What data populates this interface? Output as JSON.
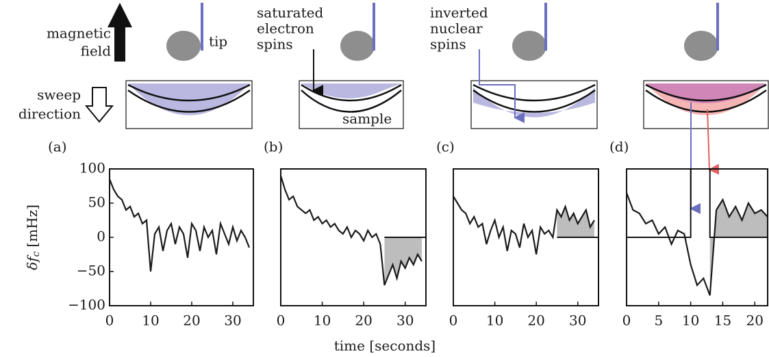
{
  "diagram": {
    "magnetic_field": [
      "magnetic",
      "field"
    ],
    "tip": "tip",
    "sweep_direction": [
      "sweep",
      "direction"
    ],
    "saturated": [
      "saturated",
      "electron",
      "spins"
    ],
    "inverted": [
      "inverted",
      "nuclear",
      "spins"
    ],
    "sample": "sample"
  },
  "xlabel": "time [seconds]",
  "ylabel": {
    "symbol": "δf",
    "subscript": "c",
    "unit": "[mHz]"
  },
  "chart_data": [
    {
      "type": "line",
      "label": "(a)",
      "color": "#1a1a1a",
      "x": [
        0,
        1,
        2,
        3,
        4,
        5,
        6,
        7,
        8,
        9,
        10,
        11,
        12,
        13,
        14,
        15,
        16,
        17,
        18,
        19,
        20,
        21,
        22,
        23,
        24,
        25,
        26,
        27,
        28,
        29,
        30,
        31,
        32,
        33,
        34
      ],
      "values": [
        85,
        70,
        60,
        55,
        40,
        45,
        30,
        35,
        20,
        25,
        -50,
        5,
        15,
        -20,
        10,
        20,
        -10,
        15,
        5,
        -30,
        20,
        10,
        -20,
        15,
        0,
        10,
        -25,
        20,
        5,
        -10,
        15,
        -5,
        10,
        0,
        -15
      ],
      "xlim": [
        0,
        35
      ],
      "xticks": [
        0,
        10,
        20,
        30
      ],
      "ylim": [
        -100,
        100
      ],
      "yticks": [
        {
          "value": -100,
          "label": "−100"
        },
        {
          "value": -50,
          "label": "−50"
        },
        0,
        50,
        100
      ]
    },
    {
      "type": "line",
      "label": "(b)",
      "color": "#1a1a1a",
      "x": [
        0,
        1,
        2,
        3,
        4,
        5,
        6,
        7,
        8,
        9,
        10,
        11,
        12,
        13,
        14,
        15,
        16,
        17,
        18,
        19,
        20,
        21,
        22,
        23,
        24,
        25,
        26,
        27,
        28,
        29,
        30,
        31,
        32,
        33,
        34
      ],
      "values": [
        90,
        70,
        55,
        60,
        45,
        40,
        35,
        40,
        25,
        30,
        20,
        25,
        15,
        20,
        10,
        5,
        15,
        0,
        10,
        5,
        -5,
        10,
        0,
        5,
        -10,
        -70,
        -55,
        -40,
        -60,
        -35,
        -45,
        -30,
        -40,
        -25,
        -35
      ],
      "model_x": [
        25,
        35
      ],
      "model_values": [
        0,
        0
      ],
      "xlim": [
        0,
        35
      ],
      "xticks": [
        0,
        10,
        20,
        30
      ],
      "ylim": [
        -100,
        100
      ]
    },
    {
      "type": "line",
      "label": "(c)",
      "color": "#1a1a1a",
      "x": [
        0,
        1,
        2,
        3,
        4,
        5,
        6,
        7,
        8,
        9,
        10,
        11,
        12,
        13,
        14,
        15,
        16,
        17,
        18,
        19,
        20,
        21,
        22,
        23,
        24,
        25,
        26,
        27,
        28,
        29,
        30,
        31,
        32,
        33,
        34
      ],
      "values": [
        60,
        50,
        40,
        35,
        20,
        30,
        15,
        20,
        -10,
        10,
        25,
        0,
        15,
        -20,
        10,
        5,
        -15,
        20,
        0,
        10,
        -25,
        15,
        5,
        10,
        0,
        40,
        30,
        45,
        25,
        35,
        20,
        30,
        40,
        15,
        25
      ],
      "model_x": [
        25,
        35
      ],
      "model_values": [
        0,
        0
      ],
      "xlim": [
        0,
        35
      ],
      "xticks": [
        0,
        10,
        20,
        30
      ],
      "ylim": [
        -100,
        100
      ]
    },
    {
      "type": "line",
      "label": "(d)",
      "color": "#1a1a1a",
      "x": [
        0,
        1,
        2,
        3,
        4,
        5,
        6,
        7,
        8,
        9,
        10,
        11,
        12,
        13,
        14,
        15,
        16,
        17,
        18,
        19,
        20,
        21,
        22
      ],
      "values": [
        65,
        40,
        35,
        20,
        25,
        5,
        15,
        -10,
        10,
        5,
        -40,
        -70,
        -60,
        -85,
        40,
        55,
        30,
        45,
        25,
        50,
        35,
        40,
        30
      ],
      "model_x": [
        0,
        10,
        10,
        13,
        13,
        22
      ],
      "model_values": [
        0,
        0,
        100,
        100,
        0,
        0
      ],
      "xlim": [
        0,
        22
      ],
      "xticks": [
        0,
        5,
        10,
        15,
        20
      ],
      "ylim": [
        -100,
        100
      ]
    }
  ]
}
